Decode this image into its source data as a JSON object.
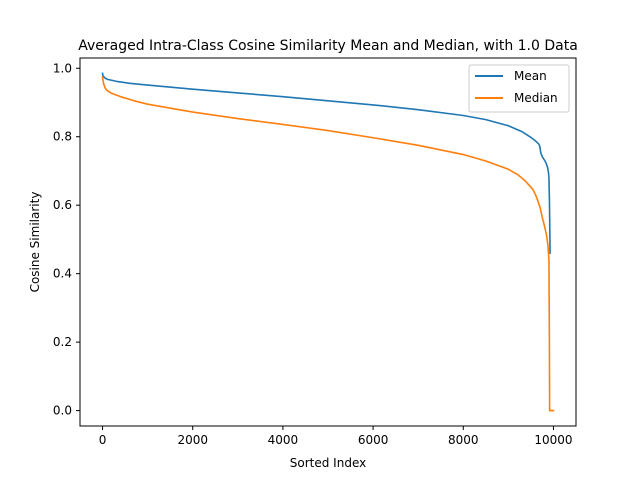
{
  "chart_data": {
    "type": "line",
    "title": "Averaged Intra-Class Cosine Similarity Mean and Median, with 1.0 Data",
    "xlabel": "Sorted Index",
    "ylabel": "Cosine Similarity",
    "xlim": [
      -500,
      10500
    ],
    "ylim": [
      -0.045,
      1.03
    ],
    "xticks": [
      0,
      2000,
      4000,
      6000,
      8000,
      10000
    ],
    "xtick_labels": [
      "0",
      "2000",
      "4000",
      "6000",
      "8000",
      "10000"
    ],
    "yticks": [
      0.0,
      0.2,
      0.4,
      0.6,
      0.8,
      1.0
    ],
    "ytick_labels": [
      "0.0",
      "0.2",
      "0.4",
      "0.6",
      "0.8",
      "1.0"
    ],
    "grid": false,
    "legend_position": "top-right",
    "series": [
      {
        "name": "Mean",
        "color": "#1f77b4",
        "x": [
          0,
          10,
          50,
          100,
          300,
          600,
          1000,
          2000,
          3000,
          4000,
          5000,
          6000,
          7000,
          8000,
          8500,
          9000,
          9300,
          9500,
          9600,
          9680,
          9700,
          9720,
          9760,
          9800,
          9840,
          9870,
          9890,
          9900,
          9910,
          9920,
          9925
        ],
        "y": [
          0.985,
          0.978,
          0.972,
          0.968,
          0.962,
          0.956,
          0.951,
          0.939,
          0.928,
          0.917,
          0.905,
          0.893,
          0.879,
          0.862,
          0.85,
          0.832,
          0.815,
          0.798,
          0.788,
          0.778,
          0.77,
          0.752,
          0.74,
          0.732,
          0.722,
          0.71,
          0.695,
          0.68,
          0.62,
          0.52,
          0.46
        ]
      },
      {
        "name": "Median",
        "color": "#ff7f0e",
        "x": [
          0,
          10,
          30,
          60,
          100,
          200,
          400,
          700,
          1000,
          2000,
          3000,
          4000,
          5000,
          6000,
          7000,
          8000,
          8500,
          9000,
          9200,
          9350,
          9450,
          9550,
          9620,
          9700,
          9760,
          9800,
          9850,
          9880,
          9900,
          9910,
          9915,
          9920,
          9940,
          10000
        ],
        "y": [
          0.975,
          0.965,
          0.952,
          0.942,
          0.935,
          0.927,
          0.917,
          0.905,
          0.895,
          0.872,
          0.853,
          0.836,
          0.818,
          0.797,
          0.775,
          0.748,
          0.729,
          0.705,
          0.69,
          0.674,
          0.66,
          0.645,
          0.625,
          0.595,
          0.56,
          0.54,
          0.51,
          0.48,
          0.44,
          0.2,
          0.0,
          0.0,
          0.0,
          0.0
        ]
      }
    ]
  }
}
